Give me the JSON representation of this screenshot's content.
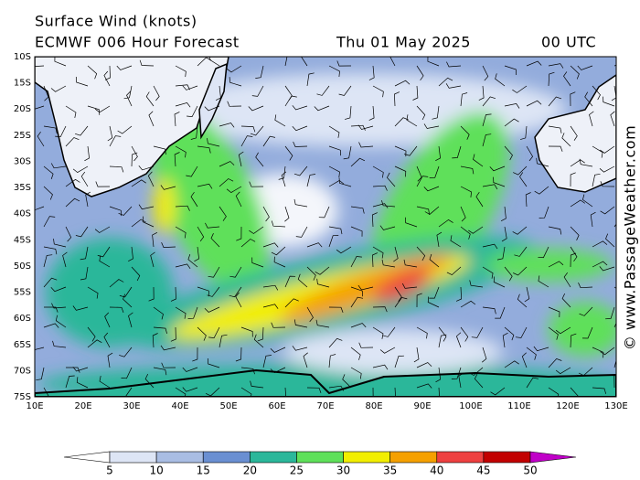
{
  "header": {
    "title": "Surface Wind (knots)",
    "model": "ECMWF 006 Hour Forecast",
    "date": "Thu 01 May 2025",
    "time": "00 UTC"
  },
  "lat_labels": [
    "10S",
    "15S",
    "20S",
    "25S",
    "30S",
    "35S",
    "40S",
    "45S",
    "50S",
    "55S",
    "60S",
    "65S",
    "70S",
    "75S"
  ],
  "lon_labels": [
    "10E",
    "20E",
    "30E",
    "40E",
    "50E",
    "60E",
    "70E",
    "80E",
    "90E",
    "100E",
    "110E",
    "120E",
    "130E"
  ],
  "colorbar": {
    "ticks": [
      5,
      10,
      15,
      20,
      25,
      30,
      35,
      40,
      45,
      50
    ],
    "colors": [
      "#ffffff",
      "#dde5f5",
      "#a9bde3",
      "#6a8fd2",
      "#2bb79a",
      "#5fe05a",
      "#f2ee00",
      "#f5a000",
      "#ee4040",
      "#c20000",
      "#c000c8"
    ]
  },
  "watermark": "© www.PassageWeather.com"
}
